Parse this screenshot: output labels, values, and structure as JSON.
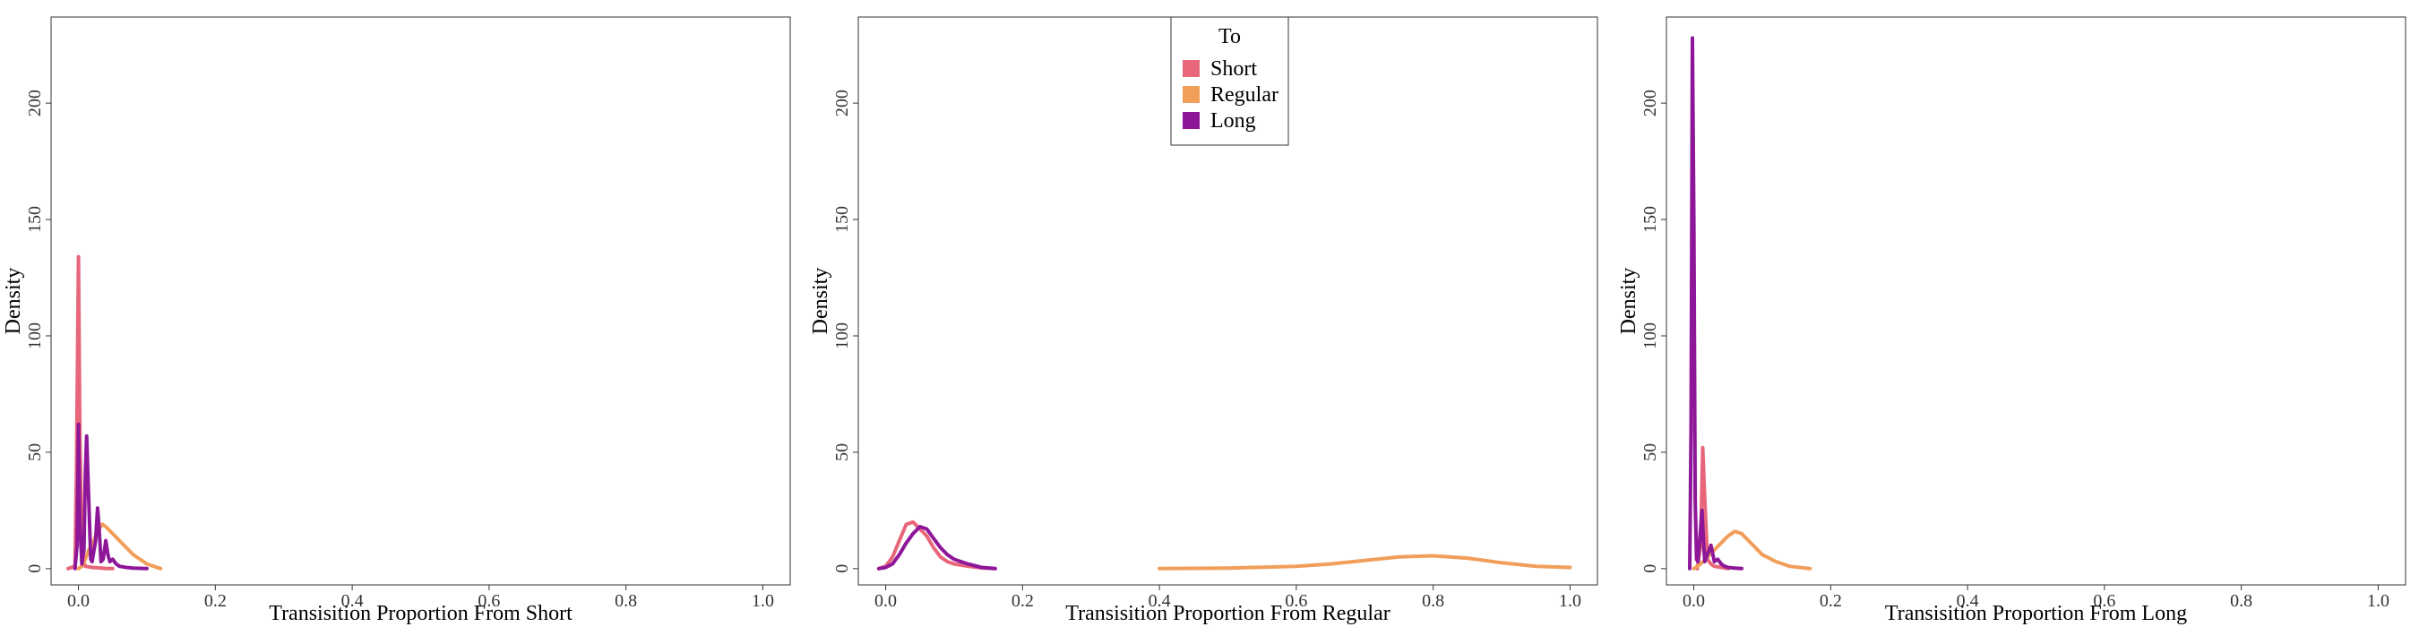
{
  "colors": {
    "short": "#E8667A",
    "regular": "#F09E5A",
    "long": "#8E1699"
  },
  "legend": {
    "title": "To",
    "items": [
      {
        "label": "Short",
        "color": "#E8667A"
      },
      {
        "label": "Regular",
        "color": "#F09E5A"
      },
      {
        "label": "Long",
        "color": "#8E1699"
      }
    ]
  },
  "chart_data": [
    {
      "type": "line",
      "xlabel": "Transisition Proportion From Short",
      "ylabel": "Density",
      "xlim": [
        -0.04,
        1.04
      ],
      "ylim": [
        -7,
        237
      ],
      "xticks": [
        0.0,
        0.2,
        0.4,
        0.6,
        0.8,
        1.0
      ],
      "xtick_labels": [
        "0.0",
        "0.2",
        "0.4",
        "0.6",
        "0.8",
        "1.0"
      ],
      "yticks": [
        0,
        50,
        100,
        150,
        200
      ],
      "ytick_labels": [
        "0",
        "50",
        "100",
        "150",
        "200"
      ],
      "grid": false,
      "series": [
        {
          "name": "Short",
          "color": "#E8667A",
          "x": [
            -0.015,
            -0.005,
            -0.003,
            0.0,
            0.002,
            0.005,
            0.01,
            0.02,
            0.03,
            0.04,
            0.05
          ],
          "y": [
            0,
            1,
            40,
            134,
            60,
            5,
            1,
            0.5,
            0.3,
            0.1,
            0
          ]
        },
        {
          "name": "Regular",
          "color": "#F09E5A",
          "x": [
            0.0,
            0.005,
            0.01,
            0.015,
            0.02,
            0.025,
            0.03,
            0.035,
            0.04,
            0.05,
            0.06,
            0.07,
            0.08,
            0.09,
            0.1,
            0.12
          ],
          "y": [
            0,
            1,
            4,
            8,
            10,
            14,
            17,
            19,
            18,
            15,
            12,
            9,
            6,
            4,
            2,
            0
          ]
        },
        {
          "name": "Long",
          "color": "#8E1699",
          "x": [
            -0.005,
            -0.002,
            0.0,
            0.002,
            0.005,
            0.008,
            0.01,
            0.012,
            0.015,
            0.018,
            0.02,
            0.025,
            0.028,
            0.03,
            0.033,
            0.036,
            0.04,
            0.043,
            0.046,
            0.05,
            0.055,
            0.06,
            0.07,
            0.08,
            0.1
          ],
          "y": [
            0,
            10,
            62,
            20,
            2,
            8,
            40,
            57,
            30,
            4,
            3,
            12,
            26,
            18,
            3,
            4,
            12,
            6,
            3,
            4,
            2,
            1,
            0.5,
            0.2,
            0
          ]
        }
      ]
    },
    {
      "type": "line",
      "xlabel": "Transisition Proportion From Regular",
      "ylabel": "Density",
      "xlim": [
        -0.04,
        1.04
      ],
      "ylim": [
        -7,
        237
      ],
      "xticks": [
        0.0,
        0.2,
        0.4,
        0.6,
        0.8,
        1.0
      ],
      "xtick_labels": [
        "0.0",
        "0.2",
        "0.4",
        "0.6",
        "0.8",
        "1.0"
      ],
      "yticks": [
        0,
        50,
        100,
        150,
        200
      ],
      "ytick_labels": [
        "0",
        "50",
        "100",
        "150",
        "200"
      ],
      "grid": false,
      "series": [
        {
          "name": "Short",
          "color": "#E8667A",
          "x": [
            -0.01,
            0.0,
            0.01,
            0.02,
            0.03,
            0.04,
            0.05,
            0.06,
            0.07,
            0.08,
            0.09,
            0.1,
            0.12,
            0.14,
            0.16
          ],
          "y": [
            0,
            1,
            5,
            12,
            19,
            20,
            17,
            14,
            9,
            5,
            3,
            2,
            1,
            0.3,
            0
          ]
        },
        {
          "name": "Regular",
          "color": "#F09E5A",
          "x": [
            0.4,
            0.5,
            0.6,
            0.65,
            0.7,
            0.75,
            0.8,
            0.85,
            0.9,
            0.95,
            1.0
          ],
          "y": [
            0,
            0.2,
            1,
            2,
            3.5,
            5,
            5.5,
            4.5,
            2.5,
            1,
            0.5
          ]
        },
        {
          "name": "Long",
          "color": "#8E1699",
          "x": [
            -0.01,
            0.0,
            0.01,
            0.02,
            0.03,
            0.04,
            0.05,
            0.06,
            0.07,
            0.08,
            0.09,
            0.1,
            0.12,
            0.14,
            0.16
          ],
          "y": [
            0,
            0.5,
            2,
            6,
            11,
            15,
            18,
            17,
            13,
            9,
            6,
            4,
            2,
            0.5,
            0
          ]
        }
      ]
    },
    {
      "type": "line",
      "xlabel": "Transisition Proportion From Long",
      "ylabel": "Density",
      "xlim": [
        -0.04,
        1.04
      ],
      "ylim": [
        -7,
        237
      ],
      "xticks": [
        0.0,
        0.2,
        0.4,
        0.6,
        0.8,
        1.0
      ],
      "xtick_labels": [
        "0.0",
        "0.2",
        "0.4",
        "0.6",
        "0.8",
        "1.0"
      ],
      "yticks": [
        0,
        50,
        100,
        150,
        200
      ],
      "ytick_labels": [
        "0",
        "50",
        "100",
        "150",
        "200"
      ],
      "grid": false,
      "series": [
        {
          "name": "Short",
          "color": "#E8667A",
          "x": [
            0.005,
            0.01,
            0.013,
            0.016,
            0.02,
            0.025,
            0.03,
            0.04,
            0.05
          ],
          "y": [
            0,
            10,
            52,
            30,
            4,
            2,
            1,
            0.5,
            0
          ]
        },
        {
          "name": "Regular",
          "color": "#F09E5A",
          "x": [
            0.0,
            0.01,
            0.02,
            0.03,
            0.04,
            0.05,
            0.06,
            0.07,
            0.08,
            0.09,
            0.1,
            0.12,
            0.14,
            0.17
          ],
          "y": [
            0,
            2,
            5,
            8,
            11,
            14,
            16,
            15,
            12,
            9,
            6,
            3,
            1,
            0
          ]
        },
        {
          "name": "Long",
          "color": "#8E1699",
          "x": [
            -0.006,
            -0.004,
            -0.002,
            0.0,
            0.002,
            0.004,
            0.006,
            0.008,
            0.012,
            0.014,
            0.016,
            0.02,
            0.025,
            0.03,
            0.035,
            0.04,
            0.045,
            0.05,
            0.06,
            0.07
          ],
          "y": [
            0,
            60,
            228,
            150,
            30,
            4,
            3,
            10,
            25,
            12,
            3,
            6,
            10,
            3,
            4,
            2,
            1,
            0.5,
            0.2,
            0
          ]
        }
      ]
    }
  ]
}
